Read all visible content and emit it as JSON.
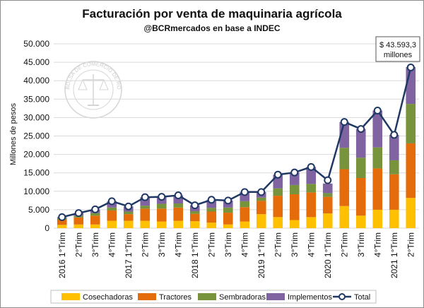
{
  "chart_data": {
    "type": "bar",
    "stacked": true,
    "title": "Facturación por venta de maquinaria agrícola",
    "subtitle": "@BCRmercados en base a INDEC",
    "ylabel": "Millones de pesos",
    "xlabel": "",
    "ylim": [
      0,
      50000
    ],
    "yticks": [
      0,
      5000,
      10000,
      15000,
      20000,
      25000,
      30000,
      35000,
      40000,
      45000,
      50000
    ],
    "ytick_labels": [
      "0",
      "5.000",
      "10.000",
      "15.000",
      "20.000",
      "25.000",
      "30.000",
      "35.000",
      "40.000",
      "45.000",
      "50.000"
    ],
    "categories": [
      "2016 1°Trim",
      "2°Trim",
      "3°Trim",
      "4°Trim",
      "2017 1°Trim",
      "2°Trim",
      "3°Trim",
      "4°Trim",
      "2018 1°Trim",
      "2°Trim",
      "3°Trim",
      "4°Trim",
      "2019 1°Trim",
      "2°Trim",
      "3°Trim",
      "4°Trim",
      "2020 1°Trim",
      "2°Trim",
      "3°Trim",
      "4°Trim",
      "2021 1°Trim",
      "2°Trim"
    ],
    "series": [
      {
        "name": "Cosechadoras",
        "color": "#FFC000",
        "values": [
          900,
          1000,
          1000,
          2000,
          2000,
          2000,
          1800,
          2000,
          1900,
          1500,
          1000,
          1800,
          3800,
          3000,
          2200,
          3000,
          4000,
          6000,
          3400,
          5000,
          5000,
          8200
        ]
      },
      {
        "name": "Tractores",
        "color": "#E46C0A",
        "values": [
          1400,
          1900,
          2400,
          2800,
          1800,
          3300,
          3500,
          3600,
          2000,
          3000,
          3200,
          3900,
          3600,
          5800,
          7000,
          6700,
          4500,
          10000,
          10200,
          11200,
          9600,
          14800
        ]
      },
      {
        "name": "Sembradoras",
        "color": "#77933C",
        "values": [
          400,
          500,
          700,
          800,
          700,
          800,
          1300,
          1100,
          700,
          1000,
          1400,
          1600,
          900,
          2000,
          2500,
          2300,
          1000,
          5800,
          5500,
          5700,
          3800,
          10700
        ]
      },
      {
        "name": "Implementos",
        "color": "#8064A2",
        "values": [
          300,
          700,
          1000,
          1700,
          1400,
          2300,
          1900,
          2200,
          1600,
          2200,
          1900,
          2500,
          1500,
          3700,
          3400,
          4600,
          2600,
          7000,
          7800,
          10000,
          6900,
          10000
        ]
      },
      {
        "name": "Total",
        "type": "line",
        "color": "#1F3864",
        "values": [
          3000,
          4100,
          5100,
          7300,
          5900,
          8400,
          8500,
          8900,
          6200,
          7700,
          7500,
          9800,
          9800,
          14500,
          15100,
          16600,
          13000,
          28800,
          26900,
          31900,
          25300,
          43593
        ]
      }
    ],
    "annotation": {
      "line1": "$ 43.593,3",
      "line2": "millones",
      "target_index": 21
    },
    "legend_position": "bottom",
    "grid": true
  },
  "watermark": {
    "text": "BOLSA DE COMERCIO DE ROSARIO"
  }
}
